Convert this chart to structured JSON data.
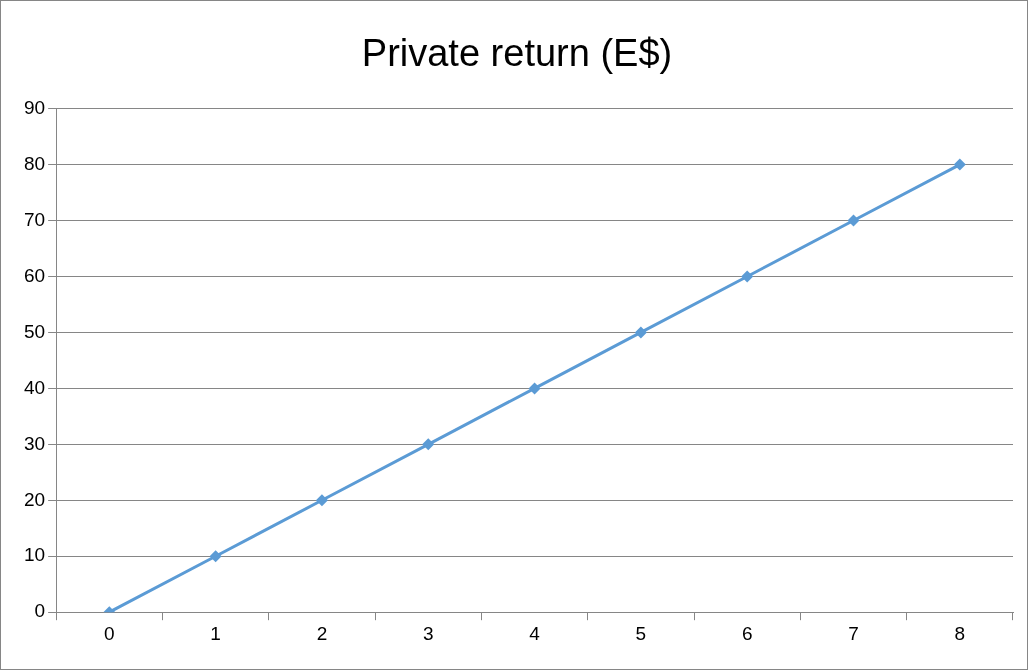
{
  "chart_data": {
    "type": "line",
    "title": "Private return (E$)",
    "categories": [
      "0",
      "1",
      "2",
      "3",
      "4",
      "5",
      "6",
      "7",
      "8"
    ],
    "series": [
      {
        "color": "#5b9bd5",
        "values": [
          0,
          10,
          20,
          30,
          40,
          50,
          60,
          70,
          80
        ]
      }
    ],
    "ylim": [
      0,
      90
    ],
    "yticks": [
      0,
      10,
      20,
      30,
      40,
      50,
      60,
      70,
      80,
      90
    ],
    "grid": "y",
    "legend": false,
    "marker": "diamond",
    "line_style": "solid"
  }
}
